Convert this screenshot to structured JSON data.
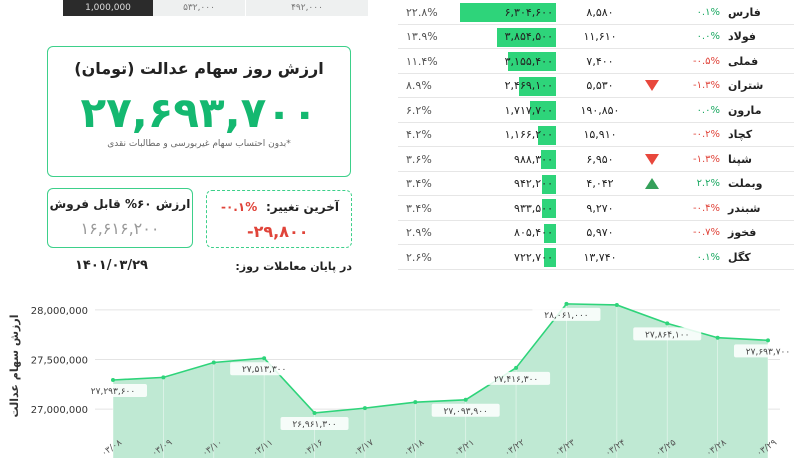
{
  "top_strip": [
    "1,000,000",
    "۵۳۲,۰۰۰",
    "۴۹۲,۰۰۰"
  ],
  "main_card": {
    "title": "ارزش روز سهام عدالت (تومان)",
    "value": "۲۷,۶۹۳,۷۰۰",
    "note": "*بدون احتساب سهام غیربورسی و مطالبات نقدی"
  },
  "sale_card": {
    "label": "ارزش ۶۰% قابل فروش",
    "value": "۱۶,۶۱۶,۲۰۰"
  },
  "change_card": {
    "label": "آخرین تغییر:",
    "percent": "-۰.۱%",
    "amount": "-۲۹,۸۰۰"
  },
  "date": {
    "label": "در پایان معاملات روز:",
    "value": "۱۴۰۱/۰۳/۲۹"
  },
  "colors": {
    "accent": "#2ed47a",
    "negative": "#e0443a",
    "positive": "#1aa861"
  },
  "table": {
    "rows": [
      {
        "weight": "۲۲.۸%",
        "market_value": "۶,۳۰۴,۶۰۰",
        "bar": 1.0,
        "price": "۸,۵۸۰",
        "arrow": "",
        "change": "۰.۱%",
        "dir": "pos",
        "symbol": "فارس"
      },
      {
        "weight": "۱۳.۹%",
        "market_value": "۳,۸۵۴,۵۰۰",
        "bar": 0.61,
        "price": "۱۱,۶۱۰",
        "arrow": "",
        "change": "۰.۰%",
        "dir": "pos",
        "symbol": "فولاد"
      },
      {
        "weight": "۱۱.۴%",
        "market_value": "۳,۱۵۵,۴۰۰",
        "bar": 0.5,
        "price": "۷,۴۰۰",
        "arrow": "",
        "change": "-۰.۵%",
        "dir": "neg",
        "symbol": "فملی"
      },
      {
        "weight": "۸.۹%",
        "market_value": "۲,۴۶۹,۱۰۰",
        "bar": 0.39,
        "price": "۵,۵۳۰",
        "arrow": "down",
        "change": "-۱.۳%",
        "dir": "neg",
        "symbol": "شتران"
      },
      {
        "weight": "۶.۲%",
        "market_value": "۱,۷۱۷,۷۰۰",
        "bar": 0.27,
        "price": "۱۹۰,۸۵۰",
        "arrow": "",
        "change": "۰.۰%",
        "dir": "pos",
        "symbol": "مارون"
      },
      {
        "weight": "۴.۲%",
        "market_value": "۱,۱۶۶,۲۰۰",
        "bar": 0.19,
        "price": "۱۵,۹۱۰",
        "arrow": "",
        "change": "-۰.۲%",
        "dir": "neg",
        "symbol": "کچاد"
      },
      {
        "weight": "۳.۶%",
        "market_value": "۹۸۸,۳۰۰",
        "bar": 0.16,
        "price": "۶,۹۵۰",
        "arrow": "down",
        "change": "-۱.۳%",
        "dir": "neg",
        "symbol": "شپنا"
      },
      {
        "weight": "۳.۴%",
        "market_value": "۹۴۲,۲۰۰",
        "bar": 0.15,
        "price": "۴,۰۴۲",
        "arrow": "up",
        "change": "۲.۲%",
        "dir": "pos",
        "symbol": "وبملت"
      },
      {
        "weight": "۳.۴%",
        "market_value": "۹۳۳,۵۰۰",
        "bar": 0.15,
        "price": "۹,۲۷۰",
        "arrow": "",
        "change": "-۰.۴%",
        "dir": "neg",
        "symbol": "شبندر"
      },
      {
        "weight": "۲.۹%",
        "market_value": "۸۰۵,۴۰۰",
        "bar": 0.13,
        "price": "۵,۹۷۰",
        "arrow": "",
        "change": "-۰.۷%",
        "dir": "neg",
        "symbol": "فخوز"
      },
      {
        "weight": "۲.۶%",
        "market_value": "۷۲۲,۷۰۰",
        "bar": 0.12,
        "price": "۱۳,۷۴۰",
        "arrow": "",
        "change": "۰.۱%",
        "dir": "pos",
        "symbol": "کگل"
      }
    ]
  },
  "chart_data": {
    "type": "area",
    "ylabel": "ارزش سهام عدالت",
    "ylim": [
      26850000,
      28080000
    ],
    "yticks": [
      27000000,
      27500000,
      28000000
    ],
    "ytick_labels": [
      "27,000,000",
      "27,500,000",
      "28,000,000"
    ],
    "x": [
      "۰۳/۰۸",
      "۰۳/۰۹",
      "۰۳/۱۰",
      "۰۳/۱۱",
      "۰۳/۱۶",
      "۰۳/۱۷",
      "۰۳/۱۸",
      "۰۳/۲۱",
      "۰۳/۲۲",
      "۰۳/۲۳",
      "۰۳/۲۴",
      "۰۳/۲۵",
      "۰۳/۲۸",
      "۰۳/۲۹"
    ],
    "values": [
      27293600,
      27320000,
      27470000,
      27513300,
      26961300,
      27010000,
      27070000,
      27093900,
      27416300,
      28061000,
      28050000,
      27864100,
      27720000,
      27693700
    ],
    "point_labels": [
      "۲۷,۲۹۳,۶۰۰",
      "",
      "",
      "۲۷,۵۱۳,۳۰۰",
      "۲۶,۹۶۱,۳۰۰",
      "",
      "",
      "۲۷,۰۹۳,۹۰۰",
      "۲۷,۴۱۶,۳۰۰",
      "۲۸,۰۶۱,۰۰۰",
      "",
      "۲۷,۸۶۴,۱۰۰",
      "",
      "۲۷,۶۹۳,۷۰۰"
    ],
    "grid": true,
    "color": "#2ed47a"
  }
}
